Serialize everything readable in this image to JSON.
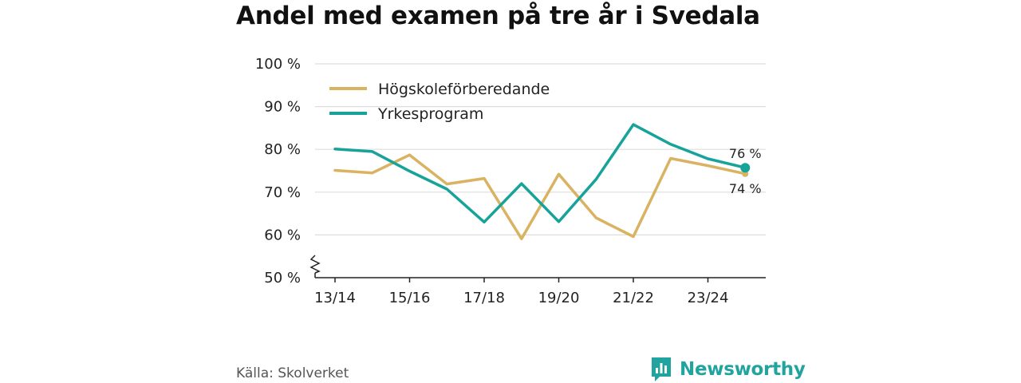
{
  "title": "Andel med examen på tre år i Svedala",
  "source": "Källa: Skolverket",
  "brand": "Newsworthy",
  "colors": {
    "hogskole": "#d9b262",
    "yrkes": "#17a39a",
    "grid": "#dddddd",
    "axis": "#222222",
    "brand": "#21a3a0"
  },
  "chart_data": {
    "type": "line",
    "title": "Andel med examen på tre år i Svedala",
    "ylim": [
      50,
      100
    ],
    "yticks": [
      50,
      60,
      70,
      80,
      90,
      100
    ],
    "ytick_labels": [
      "50 %",
      "60 %",
      "70 %",
      "80 %",
      "90 %",
      "100 %"
    ],
    "x_labels": [
      "13/14",
      "15/16",
      "17/18",
      "19/20",
      "21/22",
      "23/24"
    ],
    "x_label_index": [
      0,
      2,
      4,
      6,
      8,
      10
    ],
    "categories": [
      "13/14",
      "14/15",
      "15/16",
      "16/17",
      "17/18",
      "18/19",
      "19/20",
      "20/21",
      "21/22",
      "22/23",
      "23/24",
      "24/25"
    ],
    "legend_position": "top-left",
    "grid": true,
    "series": [
      {
        "name": "Högskoleförberedande",
        "color": "#d9b262",
        "values": [
          75.1,
          74.5,
          78.7,
          71.9,
          73.2,
          59.1,
          74.2,
          64.0,
          59.6,
          77.9,
          76.2,
          74.3
        ],
        "end_label": "74 %"
      },
      {
        "name": "Yrkesprogram",
        "color": "#17a39a",
        "values": [
          80.1,
          79.5,
          74.9,
          70.7,
          63.0,
          72.0,
          63.1,
          73.0,
          85.8,
          81.2,
          77.8,
          75.7
        ],
        "end_label": "76 %"
      }
    ]
  }
}
